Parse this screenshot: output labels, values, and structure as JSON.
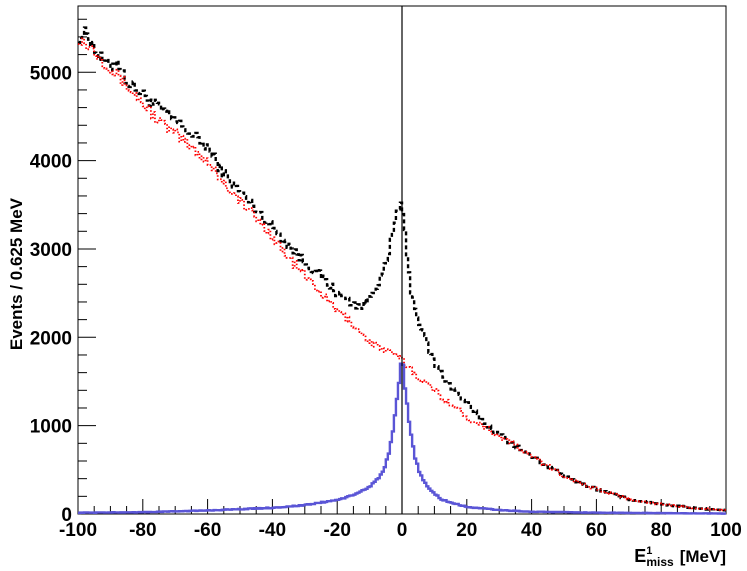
{
  "chart_data": {
    "type": "line",
    "title": "",
    "xlabel": {
      "base": "E",
      "sup": "1",
      "sub": "miss",
      "unit": "[MeV]"
    },
    "ylabel": "Events / 0.625 MeV",
    "xlim": [
      -100,
      100
    ],
    "ylim": [
      0,
      5750
    ],
    "x_ticks": [
      -100,
      -80,
      -60,
      -40,
      -20,
      0,
      20,
      40,
      60,
      80,
      100
    ],
    "y_ticks": [
      0,
      1000,
      2000,
      3000,
      4000,
      5000
    ],
    "bin_width": 0.625,
    "grid": false,
    "legend": "none",
    "vertical_line_x": 0,
    "series": [
      {
        "style": "dashed",
        "color": "#000000",
        "x": [
          -100,
          -97,
          -94,
          -90,
          -88,
          -85,
          -80,
          -75,
          -70,
          -65,
          -60,
          -55,
          -50,
          -45,
          -40,
          -35,
          -30,
          -25,
          -20,
          -15,
          -12,
          -10,
          -8,
          -6,
          -4,
          -3,
          -2,
          -1,
          0,
          1,
          2,
          3,
          5,
          8,
          10,
          15,
          20,
          25,
          30,
          40,
          50,
          60,
          70,
          80,
          90,
          100
        ],
        "y": [
          5400,
          5450,
          5200,
          5050,
          5150,
          4900,
          4750,
          4600,
          4450,
          4300,
          4150,
          3850,
          3650,
          3450,
          3250,
          3050,
          2850,
          2700,
          2500,
          2380,
          2350,
          2450,
          2580,
          2700,
          2950,
          3150,
          3350,
          3500,
          3450,
          3150,
          2750,
          2500,
          2200,
          1900,
          1700,
          1450,
          1250,
          1050,
          900,
          650,
          430,
          280,
          170,
          110,
          70,
          40
        ]
      },
      {
        "style": "dotted",
        "color": "#ff0000",
        "x": [
          -100,
          -95,
          -90,
          -85,
          -80,
          -75,
          -70,
          -65,
          -60,
          -55,
          -50,
          -45,
          -40,
          -35,
          -30,
          -25,
          -20,
          -15,
          -10,
          -5,
          0,
          5,
          10,
          15,
          20,
          25,
          30,
          35,
          40,
          50,
          60,
          70,
          80,
          90,
          100
        ],
        "y": [
          5400,
          5250,
          5050,
          4850,
          4650,
          4450,
          4300,
          4150,
          4000,
          3750,
          3550,
          3350,
          3150,
          2900,
          2700,
          2500,
          2300,
          2150,
          1950,
          1850,
          1750,
          1550,
          1400,
          1250,
          1100,
          1000,
          880,
          780,
          650,
          430,
          280,
          170,
          110,
          70,
          40
        ]
      },
      {
        "style": "solid",
        "color": "#5a55d6",
        "x": [
          -100,
          -80,
          -60,
          -40,
          -30,
          -20,
          -15,
          -10,
          -8,
          -6,
          -5,
          -4,
          -3,
          -2,
          -1,
          -0.5,
          0,
          0.5,
          1,
          2,
          3,
          4,
          5,
          6,
          8,
          10,
          12,
          15,
          20,
          30,
          40,
          60,
          80,
          100
        ],
        "y": [
          15,
          20,
          40,
          70,
          100,
          160,
          210,
          310,
          380,
          470,
          560,
          700,
          880,
          1150,
          1450,
          1650,
          1750,
          1620,
          1400,
          1100,
          850,
          650,
          520,
          420,
          300,
          230,
          170,
          130,
          80,
          45,
          25,
          15,
          10,
          5
        ]
      }
    ]
  }
}
